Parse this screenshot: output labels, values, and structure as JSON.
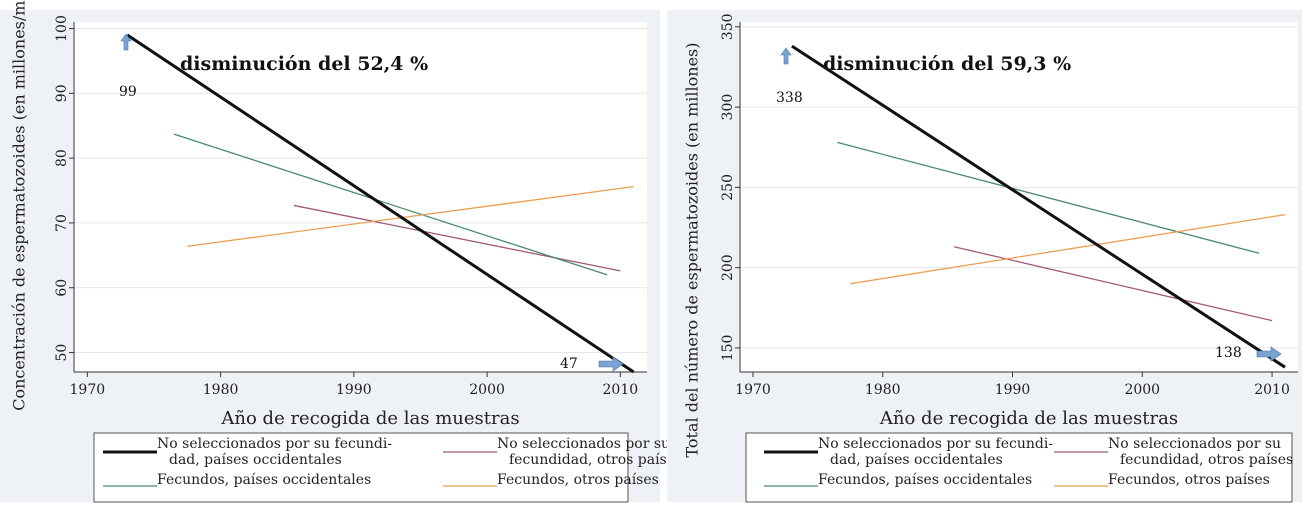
{
  "chart_data": [
    {
      "type": "line",
      "title": "",
      "xlabel": "Año de recogida de las muestras",
      "ylabel": "Concentración de espermatozoides (en millones/ml)",
      "xlim": [
        1969,
        2012
      ],
      "ylim": [
        47,
        101
      ],
      "x_ticks": [
        1970,
        1980,
        1990,
        2000,
        2010
      ],
      "y_ticks": [
        50,
        60,
        70,
        80,
        90,
        100
      ],
      "grid": true,
      "series": [
        {
          "name": "No seleccionados por su fecundidad, países occidentales",
          "color": "#111111",
          "width": 3,
          "x": [
            1973,
            2011
          ],
          "y": [
            99,
            47
          ]
        },
        {
          "name": "No seleccionados por su fecundidad, otros países",
          "color": "#a0597a",
          "width": 1.3,
          "x": [
            1985.5,
            2010
          ],
          "y": [
            72.7,
            62.6
          ]
        },
        {
          "name": "Fecundos, países occidentales",
          "color": "#4a8a6a",
          "width": 1.3,
          "x": [
            1976.5,
            2009
          ],
          "y": [
            83.7,
            62
          ]
        },
        {
          "name": "Fecundos, otros países",
          "color": "#e8a050",
          "width": 1.3,
          "x": [
            1977.5,
            2011
          ],
          "y": [
            66.4,
            75.6
          ]
        }
      ],
      "annotation": "disminución del 52,4 %",
      "start_label": "99",
      "end_label": "47",
      "legend": {
        "placement": "bottom",
        "lines": [
          [
            "No seleccionados por su fecundi-",
            "dad, países occidentales"
          ],
          [
            "No seleccionados por su",
            "fecundidad, otros países"
          ],
          [
            "Fecundos, países occidentales"
          ],
          [
            "Fecundos, otros países"
          ]
        ]
      }
    },
    {
      "type": "line",
      "title": "",
      "xlabel": "Año de recogida de las muestras",
      "ylabel": "Total del número de espermatozoides (en millones)",
      "xlim": [
        1969,
        2012
      ],
      "ylim": [
        135,
        353
      ],
      "x_ticks": [
        1970,
        1980,
        1990,
        2000,
        2010
      ],
      "y_ticks": [
        150,
        200,
        250,
        300,
        350
      ],
      "grid": true,
      "series": [
        {
          "name": "No seleccionados por su fecundidad, países occidentales",
          "color": "#111111",
          "width": 3,
          "x": [
            1973,
            2011
          ],
          "y": [
            338,
            138
          ]
        },
        {
          "name": "No seleccionados por su fecundidad, otros países",
          "color": "#a0597a",
          "width": 1.3,
          "x": [
            1985.5,
            2010
          ],
          "y": [
            213,
            167
          ]
        },
        {
          "name": "Fecundos, países occidentales",
          "color": "#4a8a6a",
          "width": 1.3,
          "x": [
            1976.5,
            2009
          ],
          "y": [
            278,
            209
          ]
        },
        {
          "name": "Fecundos, otros países",
          "color": "#e8a050",
          "width": 1.3,
          "x": [
            1977.5,
            2011
          ],
          "y": [
            190,
            233
          ]
        }
      ],
      "annotation": "disminución del 59,3 %",
      "start_label": "338",
      "end_label": "138",
      "legend": {
        "placement": "bottom",
        "lines": [
          [
            "No seleccionados por su fecundi-",
            "dad, países occidentales"
          ],
          [
            "No seleccionados por su",
            "fecundidad, otros países"
          ],
          [
            "Fecundos, países occidentales"
          ],
          [
            "Fecundos, otros países"
          ]
        ]
      }
    }
  ],
  "colors": {
    "arrow": "#7aa3d4",
    "grid": "#e6e6e6",
    "panel_bg": "#eef1f5"
  }
}
